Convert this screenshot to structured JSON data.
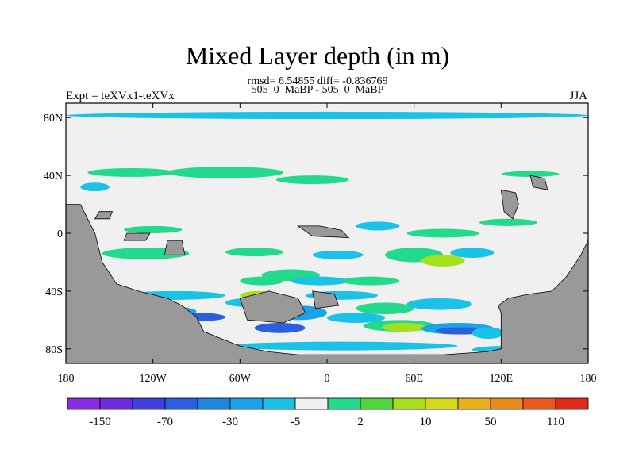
{
  "chart_data": {
    "type": "heatmap",
    "title": "Mixed Layer depth (in m)",
    "stats_line": "rmsd= 6.54855 diff= -0.836769",
    "case_line": "505_0_MaBP - 505_0_MaBP",
    "left_label": "Expt = teXVx1-teXVx",
    "right_label": "JJA",
    "x_ticks": [
      {
        "value": -180,
        "label": "180"
      },
      {
        "value": -120,
        "label": "120W"
      },
      {
        "value": -60,
        "label": "60W"
      },
      {
        "value": 0,
        "label": "0"
      },
      {
        "value": 60,
        "label": "60E"
      },
      {
        "value": 120,
        "label": "120E"
      },
      {
        "value": 180,
        "label": "180"
      }
    ],
    "y_ticks": [
      {
        "value": 80,
        "label": "80N"
      },
      {
        "value": 40,
        "label": "40N"
      },
      {
        "value": 0,
        "label": "0"
      },
      {
        "value": -40,
        "label": "40S"
      },
      {
        "value": -80,
        "label": "80S"
      }
    ],
    "xlim": [
      -180,
      180
    ],
    "ylim": [
      -90,
      90
    ],
    "colorbar": {
      "colors": [
        "#8a2be2",
        "#6a2cdc",
        "#3f3fe0",
        "#2c5fe0",
        "#1f86e0",
        "#1aa3e6",
        "#19c2e6",
        "#f0f0f0",
        "#22d98c",
        "#4fd63c",
        "#a6e01c",
        "#d8d81a",
        "#e8b01a",
        "#e88a1a",
        "#e8591a",
        "#e02a1a"
      ],
      "labels": [
        {
          "index": 1,
          "text": "-150"
        },
        {
          "index": 3,
          "text": "-70"
        },
        {
          "index": 5,
          "text": "-30"
        },
        {
          "index": 7,
          "text": "-5"
        },
        {
          "index": 9,
          "text": "2"
        },
        {
          "index": 11,
          "text": "10"
        },
        {
          "index": 13,
          "text": "50"
        },
        {
          "index": 15,
          "text": "110"
        }
      ]
    },
    "land_color": "#999999",
    "ocean_background": "#f0f0f0",
    "anomaly_regions": [
      {
        "lon": -180,
        "lat": 84,
        "w": 360,
        "h": 5,
        "value": -5
      },
      {
        "lon": -165,
        "lat": 45,
        "w": 60,
        "h": 6,
        "value": 2
      },
      {
        "lon": -110,
        "lat": 46,
        "w": 80,
        "h": 8,
        "value": 2
      },
      {
        "lon": -170,
        "lat": 35,
        "w": 20,
        "h": 6,
        "value": -5
      },
      {
        "lon": -35,
        "lat": 40,
        "w": 50,
        "h": 6,
        "value": 2
      },
      {
        "lon": 120,
        "lat": 43,
        "w": 40,
        "h": 4,
        "value": 2
      },
      {
        "lon": 55,
        "lat": 3,
        "w": 50,
        "h": 6,
        "value": 2
      },
      {
        "lon": 105,
        "lat": 10,
        "w": 40,
        "h": 5,
        "value": 2
      },
      {
        "lon": 20,
        "lat": 8,
        "w": 30,
        "h": 6,
        "value": -5
      },
      {
        "lon": -140,
        "lat": 5,
        "w": 40,
        "h": 5,
        "value": 2
      },
      {
        "lon": -155,
        "lat": -10,
        "w": 60,
        "h": 8,
        "value": 2
      },
      {
        "lon": -70,
        "lat": -10,
        "w": 40,
        "h": 6,
        "value": 2
      },
      {
        "lon": -10,
        "lat": -12,
        "w": 35,
        "h": 6,
        "value": -5
      },
      {
        "lon": 40,
        "lat": -10,
        "w": 40,
        "h": 10,
        "value": 2
      },
      {
        "lon": 65,
        "lat": -15,
        "w": 30,
        "h": 8,
        "value": 10
      },
      {
        "lon": 85,
        "lat": -10,
        "w": 30,
        "h": 7,
        "value": -5
      },
      {
        "lon": -60,
        "lat": -30,
        "w": 30,
        "h": 6,
        "value": 2
      },
      {
        "lon": -45,
        "lat": -25,
        "w": 40,
        "h": 8,
        "value": 2
      },
      {
        "lon": -25,
        "lat": -30,
        "w": 40,
        "h": 6,
        "value": -5
      },
      {
        "lon": 10,
        "lat": -30,
        "w": 40,
        "h": 6,
        "value": 2
      },
      {
        "lon": -140,
        "lat": -40,
        "w": 70,
        "h": 6,
        "value": -5
      },
      {
        "lon": -150,
        "lat": -50,
        "w": 60,
        "h": 8,
        "value": -30
      },
      {
        "lon": -110,
        "lat": -55,
        "w": 40,
        "h": 6,
        "value": -70
      },
      {
        "lon": -70,
        "lat": -45,
        "w": 30,
        "h": 6,
        "value": -5
      },
      {
        "lon": -60,
        "lat": -40,
        "w": 25,
        "h": 6,
        "value": 10
      },
      {
        "lon": -40,
        "lat": -50,
        "w": 40,
        "h": 10,
        "value": -30
      },
      {
        "lon": -50,
        "lat": -62,
        "w": 35,
        "h": 7,
        "value": -70
      },
      {
        "lon": -15,
        "lat": -40,
        "w": 50,
        "h": 6,
        "value": -5
      },
      {
        "lon": 0,
        "lat": -55,
        "w": 40,
        "h": 7,
        "value": -5
      },
      {
        "lon": 20,
        "lat": -48,
        "w": 40,
        "h": 8,
        "value": 2
      },
      {
        "lon": 25,
        "lat": -60,
        "w": 50,
        "h": 8,
        "value": 2
      },
      {
        "lon": 38,
        "lat": -62,
        "w": 30,
        "h": 6,
        "value": 10
      },
      {
        "lon": 55,
        "lat": -45,
        "w": 45,
        "h": 8,
        "value": -5
      },
      {
        "lon": 65,
        "lat": -62,
        "w": 50,
        "h": 8,
        "value": -30
      },
      {
        "lon": 75,
        "lat": -65,
        "w": 35,
        "h": 5,
        "value": -70
      },
      {
        "lon": 100,
        "lat": -65,
        "w": 22,
        "h": 8,
        "value": -5
      },
      {
        "lon": -70,
        "lat": -75,
        "w": 160,
        "h": 6,
        "value": -5
      },
      {
        "lon": 100,
        "lat": -78,
        "w": 40,
        "h": 5,
        "value": -5
      }
    ]
  }
}
